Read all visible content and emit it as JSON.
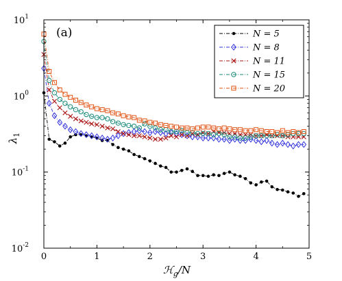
{
  "chart_data": {
    "type": "line",
    "panel_label": "(a)",
    "xlabel": "ℋ_g/N",
    "ylabel": "λ_1",
    "xlim": [
      0,
      5
    ],
    "ylim": [
      0.01,
      10
    ],
    "yscale": "log",
    "x_ticks": [
      "0",
      "1",
      "2",
      "3",
      "4",
      "5"
    ],
    "y_ticks": [
      {
        "base": "10",
        "exp": "-2",
        "value": 0.01
      },
      {
        "base": "10",
        "exp": "-1",
        "value": 0.1
      },
      {
        "base": "10",
        "exp": "0",
        "value": 1
      },
      {
        "base": "10",
        "exp": "1",
        "value": 10
      }
    ],
    "grid": false,
    "legend_position": "top-right",
    "series": [
      {
        "name": "N = 5",
        "color": "#000000",
        "marker": "dot",
        "x": [
          0.0,
          0.1,
          0.2,
          0.3,
          0.4,
          0.5,
          0.6,
          0.7,
          0.8,
          0.9,
          1.0,
          1.1,
          1.2,
          1.3,
          1.4,
          1.5,
          1.6,
          1.7,
          1.8,
          1.9,
          2.0,
          2.1,
          2.2,
          2.3,
          2.4,
          2.5,
          2.6,
          2.7,
          2.8,
          2.9,
          3.0,
          3.1,
          3.2,
          3.3,
          3.4,
          3.5,
          3.6,
          3.7,
          3.8,
          3.9,
          4.0,
          4.1,
          4.2,
          4.3,
          4.4,
          4.5,
          4.6,
          4.7,
          4.8,
          4.9
        ],
        "values": [
          1.1,
          0.27,
          0.25,
          0.22,
          0.24,
          0.29,
          0.31,
          0.31,
          0.3,
          0.29,
          0.28,
          0.26,
          0.26,
          0.23,
          0.21,
          0.2,
          0.19,
          0.17,
          0.16,
          0.15,
          0.14,
          0.13,
          0.12,
          0.115,
          0.1,
          0.1,
          0.105,
          0.11,
          0.102,
          0.09,
          0.09,
          0.088,
          0.092,
          0.09,
          0.096,
          0.1,
          0.092,
          0.088,
          0.082,
          0.072,
          0.068,
          0.074,
          0.076,
          0.064,
          0.059,
          0.058,
          0.055,
          0.053,
          0.048,
          0.052
        ]
      },
      {
        "name": "N = 8",
        "color": "#3333dd",
        "marker": "diamond",
        "x": [
          0.0,
          0.1,
          0.2,
          0.3,
          0.4,
          0.5,
          0.6,
          0.7,
          0.8,
          0.9,
          1.0,
          1.1,
          1.2,
          1.3,
          1.4,
          1.5,
          1.6,
          1.7,
          1.8,
          1.9,
          2.0,
          2.1,
          2.2,
          2.3,
          2.4,
          2.5,
          2.6,
          2.7,
          2.8,
          2.9,
          3.0,
          3.1,
          3.2,
          3.3,
          3.4,
          3.5,
          3.6,
          3.7,
          3.8,
          3.9,
          4.0,
          4.1,
          4.2,
          4.3,
          4.4,
          4.5,
          4.6,
          4.7,
          4.8,
          4.9
        ],
        "values": [
          2.3,
          0.8,
          0.55,
          0.45,
          0.4,
          0.36,
          0.34,
          0.32,
          0.31,
          0.3,
          0.29,
          0.28,
          0.27,
          0.28,
          0.3,
          0.32,
          0.33,
          0.34,
          0.35,
          0.34,
          0.33,
          0.34,
          0.33,
          0.32,
          0.33,
          0.32,
          0.31,
          0.3,
          0.29,
          0.29,
          0.28,
          0.28,
          0.28,
          0.27,
          0.27,
          0.26,
          0.27,
          0.26,
          0.26,
          0.27,
          0.26,
          0.25,
          0.26,
          0.24,
          0.23,
          0.24,
          0.23,
          0.22,
          0.23,
          0.23
        ]
      },
      {
        "name": "N = 11",
        "color": "#aa1111",
        "marker": "x",
        "x": [
          0.0,
          0.1,
          0.2,
          0.3,
          0.4,
          0.5,
          0.6,
          0.7,
          0.8,
          0.9,
          1.0,
          1.1,
          1.2,
          1.3,
          1.4,
          1.5,
          1.6,
          1.7,
          1.8,
          1.9,
          2.0,
          2.1,
          2.2,
          2.3,
          2.4,
          2.5,
          2.6,
          2.7,
          2.8,
          2.9,
          3.0,
          3.1,
          3.2,
          3.3,
          3.4,
          3.5,
          3.6,
          3.7,
          3.8,
          3.9,
          4.0,
          4.1,
          4.2,
          4.3,
          4.4,
          4.5,
          4.6,
          4.7,
          4.8,
          4.9
        ],
        "values": [
          3.5,
          1.2,
          0.85,
          0.7,
          0.6,
          0.54,
          0.5,
          0.47,
          0.45,
          0.43,
          0.42,
          0.4,
          0.38,
          0.37,
          0.34,
          0.32,
          0.31,
          0.3,
          0.3,
          0.29,
          0.28,
          0.27,
          0.27,
          0.28,
          0.3,
          0.29,
          0.31,
          0.3,
          0.32,
          0.31,
          0.33,
          0.32,
          0.34,
          0.33,
          0.33,
          0.32,
          0.32,
          0.31,
          0.31,
          0.31,
          0.3,
          0.3,
          0.31,
          0.3,
          0.3,
          0.3,
          0.29,
          0.29,
          0.29,
          0.29
        ]
      },
      {
        "name": "N = 15",
        "color": "#1a8a7a",
        "marker": "circle",
        "x": [
          0.0,
          0.1,
          0.2,
          0.3,
          0.4,
          0.5,
          0.6,
          0.7,
          0.8,
          0.9,
          1.0,
          1.1,
          1.2,
          1.3,
          1.4,
          1.5,
          1.6,
          1.7,
          1.8,
          1.9,
          2.0,
          2.1,
          2.2,
          2.3,
          2.4,
          2.5,
          2.6,
          2.7,
          2.8,
          2.9,
          3.0,
          3.1,
          3.2,
          3.3,
          3.4,
          3.5,
          3.6,
          3.7,
          3.8,
          3.9,
          4.0,
          4.1,
          4.2,
          4.3,
          4.4,
          4.5,
          4.6,
          4.7,
          4.8,
          4.9
        ],
        "values": [
          5.2,
          1.6,
          1.1,
          0.9,
          0.8,
          0.72,
          0.66,
          0.62,
          0.57,
          0.54,
          0.52,
          0.52,
          0.5,
          0.46,
          0.44,
          0.42,
          0.41,
          0.4,
          0.38,
          0.43,
          0.4,
          0.38,
          0.36,
          0.36,
          0.34,
          0.34,
          0.35,
          0.33,
          0.33,
          0.32,
          0.32,
          0.32,
          0.31,
          0.32,
          0.31,
          0.29,
          0.29,
          0.28,
          0.28,
          0.29,
          0.3,
          0.3,
          0.3,
          0.3,
          0.31,
          0.3,
          0.31,
          0.32,
          0.32,
          0.32
        ]
      },
      {
        "name": "N = 20",
        "color": "#e05010",
        "marker": "square",
        "x": [
          0.0,
          0.1,
          0.2,
          0.3,
          0.4,
          0.5,
          0.6,
          0.7,
          0.8,
          0.9,
          1.0,
          1.1,
          1.2,
          1.3,
          1.4,
          1.5,
          1.6,
          1.7,
          1.8,
          1.9,
          2.0,
          2.1,
          2.2,
          2.3,
          2.4,
          2.5,
          2.6,
          2.7,
          2.8,
          2.9,
          3.0,
          3.1,
          3.2,
          3.3,
          3.4,
          3.5,
          3.6,
          3.7,
          3.8,
          3.9,
          4.0,
          4.1,
          4.2,
          4.3,
          4.4,
          4.5,
          4.6,
          4.7,
          4.8,
          4.9
        ],
        "values": [
          6.5,
          2.1,
          1.5,
          1.2,
          1.05,
          0.96,
          0.88,
          0.82,
          0.76,
          0.72,
          0.68,
          0.66,
          0.64,
          0.6,
          0.58,
          0.55,
          0.53,
          0.52,
          0.48,
          0.47,
          0.45,
          0.44,
          0.42,
          0.41,
          0.4,
          0.39,
          0.38,
          0.38,
          0.37,
          0.38,
          0.39,
          0.39,
          0.38,
          0.37,
          0.38,
          0.37,
          0.36,
          0.36,
          0.35,
          0.35,
          0.36,
          0.35,
          0.34,
          0.34,
          0.33,
          0.35,
          0.33,
          0.34,
          0.33,
          0.34
        ]
      }
    ]
  }
}
